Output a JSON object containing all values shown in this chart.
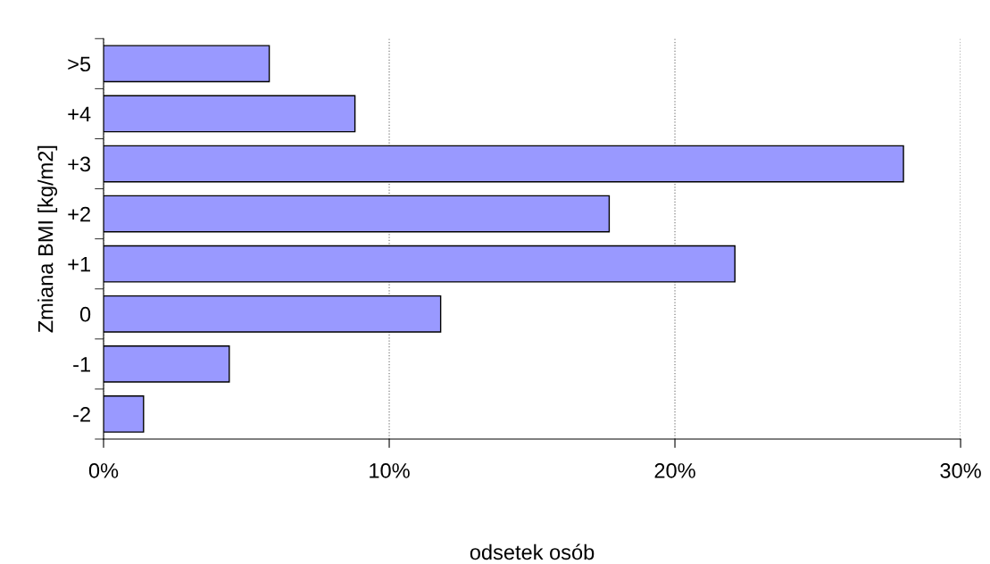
{
  "chart_data": {
    "type": "bar",
    "orientation": "horizontal",
    "xlabel": "odsetek osób",
    "ylabel": "Zmiana BMI [kg/m2]",
    "categories": [
      ">5",
      "+4",
      "+3",
      "+2",
      "+1",
      "0",
      "-1",
      "-2"
    ],
    "values": [
      5.8,
      8.8,
      28.0,
      17.7,
      22.1,
      11.8,
      4.4,
      1.4
    ],
    "color": "#9999ff",
    "xlim": [
      0,
      30
    ],
    "xticks": [
      {
        "value": 0,
        "label": "0%"
      },
      {
        "value": 10,
        "label": "10%"
      },
      {
        "value": 20,
        "label": "20%"
      },
      {
        "value": 30,
        "label": "30%"
      }
    ],
    "grid": "x"
  }
}
